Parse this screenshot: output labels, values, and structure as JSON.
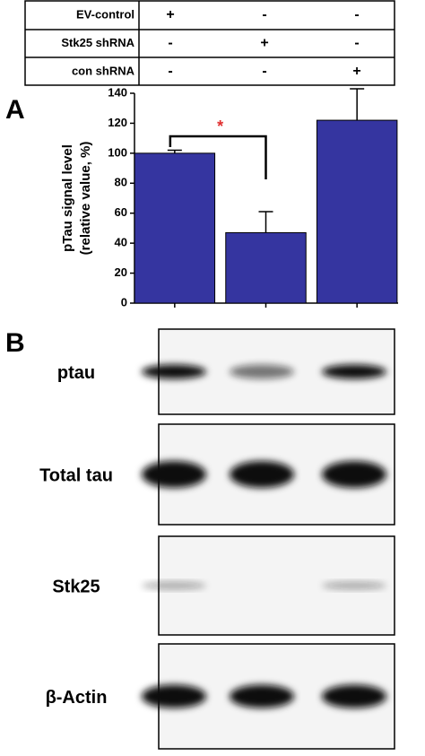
{
  "conditions": {
    "rows": [
      {
        "label": "EV-control",
        "cells": [
          "+",
          "-",
          "-"
        ]
      },
      {
        "label": "Stk25 shRNA",
        "cells": [
          "-",
          "+",
          "-"
        ]
      },
      {
        "label": "con  shRNA",
        "cells": [
          "-",
          "-",
          "+"
        ]
      }
    ]
  },
  "panel_a": "A",
  "chart_data": {
    "type": "bar",
    "ylabel": [
      "pTau signal level",
      "(relative value, %)"
    ],
    "categories": [
      null,
      null,
      null
    ],
    "values": [
      100,
      47,
      122
    ],
    "errors": [
      2,
      14,
      21
    ],
    "color": "#3535a0",
    "ylim": [
      0,
      140
    ],
    "yticks": [
      0,
      20,
      40,
      60,
      80,
      100,
      120,
      140
    ],
    "annotation": "*"
  },
  "panel_b": "B",
  "blots": [
    {
      "label": "ptau"
    },
    {
      "label": "Total tau"
    },
    {
      "label": "Stk25"
    },
    {
      "label": "β-Actin"
    }
  ]
}
